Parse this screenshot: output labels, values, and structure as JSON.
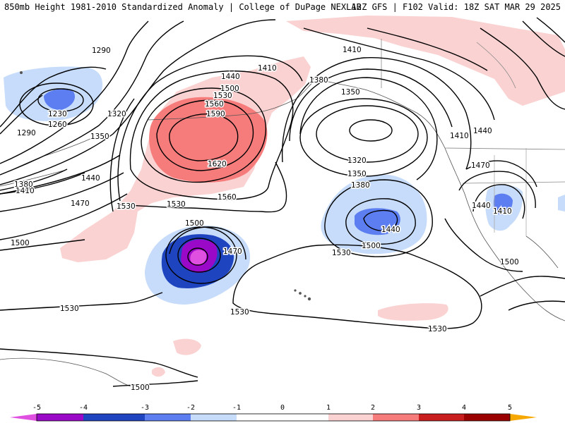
{
  "header": {
    "title": "850mb Height 1981-2010 Standardized Anomaly | College of DuPage NEXLAB",
    "run_info": "12Z GFS | F102 Valid: 18Z SAT MAR 29 2025"
  },
  "colors": {
    "neg5": "#e050e0",
    "neg4": "#9a08c8",
    "neg3": "#1e44c0",
    "neg2": "#5c7ef0",
    "neg1": "#c6dcfa",
    "pos1": "#fbd2d2",
    "pos2": "#f67c7c",
    "pos3": "#c81e1e",
    "pos4": "#9a0000",
    "pos5": "#f6a800",
    "contour": "#000000"
  },
  "legend": {
    "ticks": [
      "-5",
      "-4",
      "-3",
      "-2",
      "-1",
      "0",
      "1",
      "2",
      "3",
      "4",
      "5"
    ]
  },
  "contour_labels": [
    "1290",
    "1230",
    "1260",
    "1290",
    "1320",
    "1350",
    "1380",
    "1410",
    "1440",
    "1470",
    "1500",
    "1410",
    "1440",
    "1500",
    "1530",
    "1560",
    "1590",
    "1620",
    "1530",
    "1560",
    "1530",
    "1500",
    "1470",
    "1530",
    "1530",
    "1500",
    "1410",
    "1380",
    "1350",
    "1320",
    "1350",
    "1380",
    "1440",
    "1500",
    "1530",
    "1410",
    "1440",
    "1470",
    "1440",
    "1410",
    "1500",
    "1530",
    "1500"
  ]
}
